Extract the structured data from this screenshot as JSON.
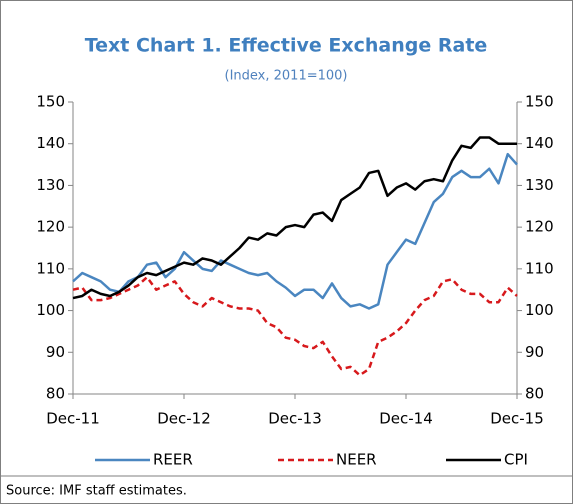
{
  "chart_data": {
    "type": "line",
    "title": "Text Chart 1. Effective Exchange Rate",
    "subtitle": "(Index, 2011=100)",
    "categories": [
      "Dec-11",
      null,
      null,
      null,
      null,
      null,
      null,
      null,
      null,
      null,
      null,
      null,
      "Dec-12",
      null,
      null,
      null,
      null,
      null,
      null,
      null,
      null,
      null,
      null,
      null,
      "Dec-13",
      null,
      null,
      null,
      null,
      null,
      null,
      null,
      null,
      null,
      null,
      null,
      "Dec-14",
      null,
      null,
      null,
      null,
      null,
      null,
      null,
      null,
      null,
      null,
      null,
      "Dec-15"
    ],
    "series": [
      {
        "name": "REER",
        "color": "#4a86c0",
        "dashed": false,
        "values": [
          107,
          109,
          108,
          107,
          105,
          104.5,
          107,
          108,
          111,
          111.5,
          108,
          110,
          114,
          112,
          110,
          109.5,
          112,
          111,
          110,
          109,
          108.5,
          109,
          107,
          105.5,
          103.5,
          105,
          105,
          103,
          106.5,
          103,
          101,
          101.5,
          100.5,
          101.5,
          111,
          114,
          117,
          116,
          121,
          126,
          128,
          132,
          133.5,
          132,
          132,
          134,
          130.5,
          137.5,
          135
        ]
      },
      {
        "name": "NEER",
        "color": "#d7191c",
        "dashed": true,
        "values": [
          105,
          105.5,
          102.5,
          102.5,
          103,
          104,
          105,
          106,
          108,
          105,
          106,
          107,
          104,
          102,
          101,
          103,
          102,
          101,
          100.5,
          100.5,
          100,
          97,
          96,
          93.5,
          93,
          91.5,
          91,
          92.5,
          89,
          86,
          86.5,
          84.5,
          86,
          92.5,
          93.5,
          95,
          97,
          100,
          102.5,
          103.5,
          107,
          107.5,
          105,
          104,
          104,
          102,
          102,
          105.5,
          103.5
        ]
      },
      {
        "name": "CPI",
        "color": "#000000",
        "dashed": false,
        "values": [
          103,
          103.5,
          105,
          104,
          103.5,
          104.5,
          106,
          108,
          109,
          108.5,
          109.5,
          110.5,
          111.5,
          111,
          112.5,
          112,
          111,
          113,
          115,
          117.5,
          117,
          118.5,
          118,
          120,
          120.5,
          120,
          123,
          123.5,
          121.5,
          126.5,
          128,
          129.5,
          133,
          133.5,
          127.5,
          129.5,
          130.5,
          129,
          131,
          131.5,
          131,
          136,
          139.5,
          139,
          141.5,
          141.5,
          140,
          140,
          140
        ]
      }
    ],
    "ylim": [
      80,
      150
    ],
    "yticks": [
      80,
      90,
      100,
      110,
      120,
      130,
      140,
      150
    ],
    "y2lim": [
      80,
      150
    ],
    "y2ticks": [
      80,
      90,
      100,
      110,
      120,
      130,
      140,
      150
    ],
    "grid": false,
    "legend": "bottom",
    "source": "Source: IMF staff estimates."
  }
}
